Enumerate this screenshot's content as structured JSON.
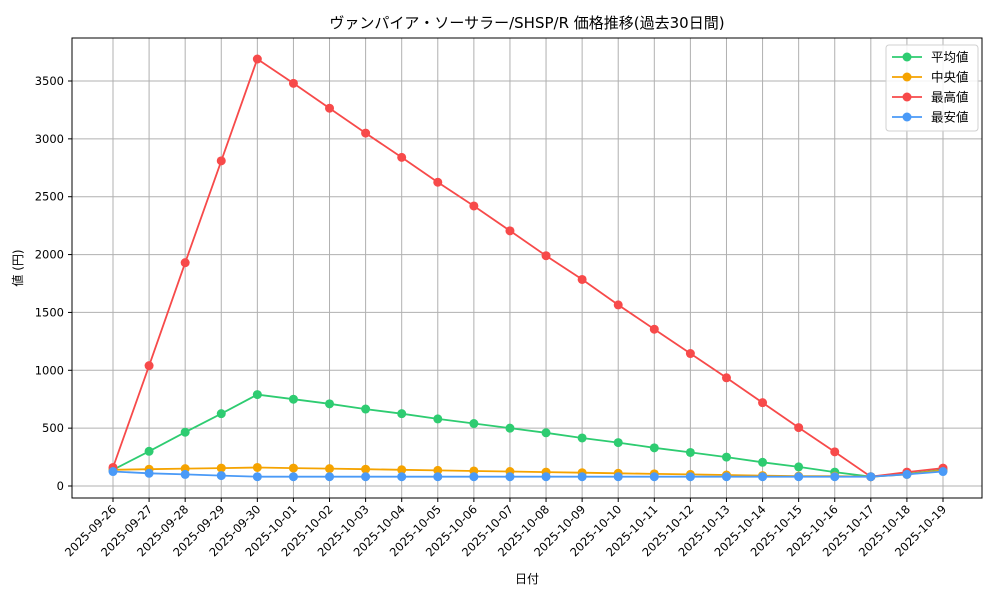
{
  "chart_data": {
    "type": "line",
    "title": "ヴァンパイア・ソーサラー/SHSP/R 価格推移(過去30日間)",
    "xlabel": "日付",
    "ylabel": "値 (円)",
    "ylim": [
      -100,
      3850
    ],
    "yticks": [
      0,
      500,
      1000,
      1500,
      2000,
      2500,
      3000,
      3500
    ],
    "grid": true,
    "legend_position": "upper right",
    "x": [
      "2025-09-26",
      "2025-09-27",
      "2025-09-28",
      "2025-09-29",
      "2025-09-30",
      "2025-10-01",
      "2025-10-02",
      "2025-10-03",
      "2025-10-04",
      "2025-10-05",
      "2025-10-06",
      "2025-10-07",
      "2025-10-08",
      "2025-10-09",
      "2025-10-10",
      "2025-10-11",
      "2025-10-12",
      "2025-10-13",
      "2025-10-14",
      "2025-10-15",
      "2025-10-16",
      "2025-10-17",
      "2025-10-18",
      "2025-10-19"
    ],
    "series": [
      {
        "name": "平均値",
        "color": "#2ecc71",
        "values": [
          140,
          300,
          465,
          625,
          790,
          750,
          710,
          665,
          625,
          580,
          540,
          500,
          460,
          415,
          375,
          330,
          290,
          250,
          205,
          165,
          120,
          80,
          105,
          140
        ]
      },
      {
        "name": "中央値",
        "color": "#f5a300",
        "values": [
          140,
          145,
          150,
          155,
          160,
          155,
          150,
          145,
          140,
          135,
          130,
          125,
          120,
          115,
          110,
          105,
          100,
          95,
          90,
          85,
          85,
          80,
          100,
          135
        ]
      },
      {
        "name": "最高値",
        "color": "#f74a4a",
        "values": [
          160,
          1040,
          1930,
          2810,
          3690,
          3480,
          3265,
          3050,
          2840,
          2625,
          2420,
          2205,
          1990,
          1785,
          1565,
          1355,
          1145,
          935,
          720,
          505,
          295,
          80,
          120,
          155
        ]
      },
      {
        "name": "最安値",
        "color": "#4a9af7",
        "values": [
          125,
          110,
          100,
          90,
          80,
          80,
          80,
          80,
          80,
          80,
          80,
          80,
          80,
          80,
          80,
          80,
          80,
          80,
          80,
          80,
          80,
          80,
          100,
          125
        ]
      }
    ]
  }
}
